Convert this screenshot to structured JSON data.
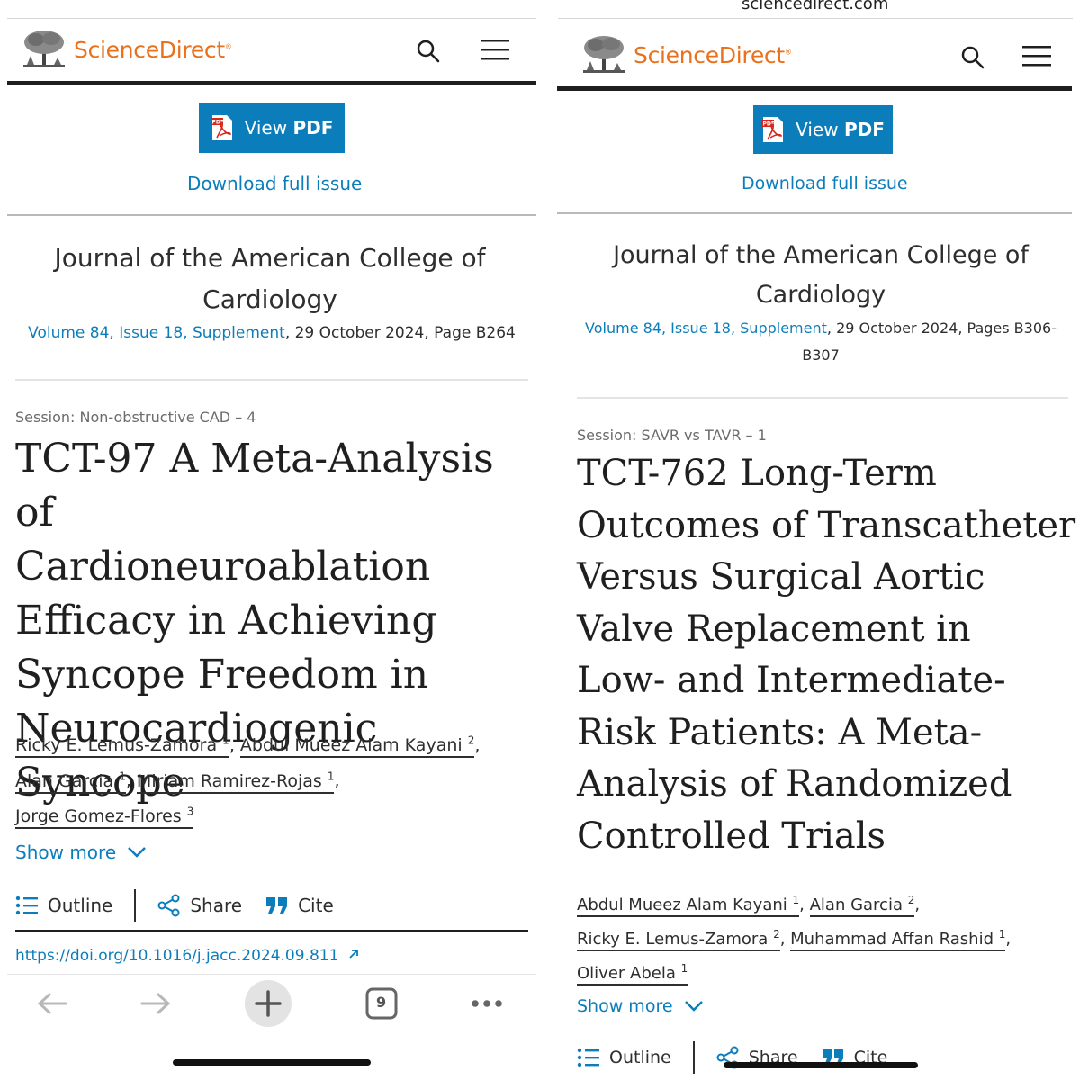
{
  "brand": {
    "name": "ScienceDirect",
    "color": "#e9711c"
  },
  "accent_color": "#0c7dbb",
  "left": {
    "view_pdf_prefix": "View",
    "view_pdf_bold": "PDF",
    "download_full_issue": "Download full issue",
    "journal_line1": "Journal of the American College of",
    "journal_line2": "Cardiology",
    "volume_link": "Volume 84, Issue 18, Supplement",
    "date_pages": ", 29 October 2024, Page B264",
    "session": "Session: Non-obstructive CAD – 4",
    "title_lines": [
      "TCT-97 A Meta-Analysis of",
      "Cardioneuroablation",
      "Efficacy in Achieving",
      "Syncope Freedom in",
      "Neurocardiogenic Syncope"
    ],
    "authors": [
      {
        "name": "Ricky E. Lemus-Zamora",
        "aff": "1"
      },
      {
        "name": "Abdul Mueez Alam Kayani",
        "aff": "2"
      },
      {
        "name": "Alan Garcia",
        "aff": "1"
      },
      {
        "name": "Miriam Ramirez-Rojas",
        "aff": "1"
      },
      {
        "name": "Jorge Gomez-Flores",
        "aff": "3"
      }
    ],
    "show_more": "Show more",
    "outline": "Outline",
    "share": "Share",
    "cite": "Cite",
    "doi": "https://doi.org/10.1016/j.jacc.2024.09.811",
    "tab_count": "9"
  },
  "right": {
    "url": "sciencedirect.com",
    "view_pdf_prefix": "View",
    "view_pdf_bold": "PDF",
    "download_full_issue": "Download full issue",
    "journal_line1": "Journal of the American College of",
    "journal_line2": "Cardiology",
    "volume_link": "Volume 84, Issue 18, Supplement",
    "date_pages_1": ", 29 October 2024, Pages B306-",
    "date_pages_2": "B307",
    "session": "Session: SAVR vs TAVR – 1",
    "title_lines": [
      "TCT-762 Long-Term",
      "Outcomes of Transcatheter",
      "Versus Surgical Aortic",
      "Valve Replacement in",
      "Low- and Intermediate-",
      "Risk Patients: A Meta-",
      "Analysis of Randomized",
      "Controlled Trials"
    ],
    "authors": [
      {
        "name": "Abdul Mueez Alam Kayani",
        "aff": "1"
      },
      {
        "name": "Alan Garcia",
        "aff": "2"
      },
      {
        "name": "Ricky E. Lemus-Zamora",
        "aff": "2"
      },
      {
        "name": "Muhammad Affan Rashid",
        "aff": "1"
      },
      {
        "name": "Oliver Abela",
        "aff": "1"
      }
    ],
    "show_more": "Show more",
    "outline": "Outline",
    "share": "Share",
    "cite": "Cite"
  }
}
